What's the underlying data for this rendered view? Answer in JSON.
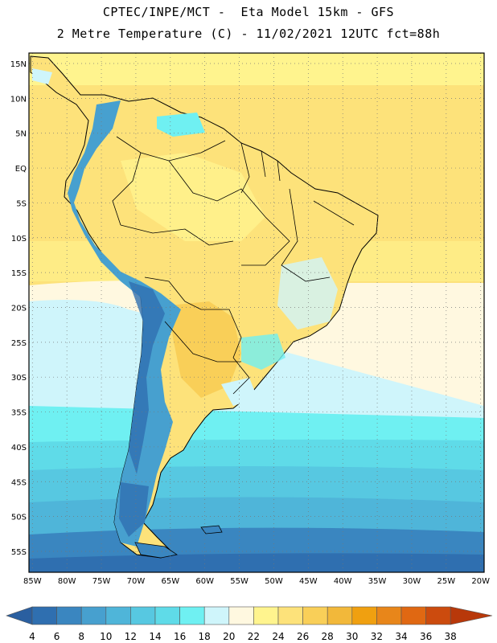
{
  "header": {
    "line1": "CPTEC/INPE/MCT -  Eta Model 15km - GFS",
    "line2": "2 Metre Temperature (C) - 11/02/2021 12UTC fct=88h"
  },
  "map": {
    "lat_labels": [
      "15N",
      "10N",
      "5N",
      "EQ",
      "5S",
      "10S",
      "15S",
      "20S",
      "25S",
      "30S",
      "35S",
      "40S",
      "45S",
      "50S",
      "55S"
    ],
    "lon_labels": [
      "85W",
      "80W",
      "75W",
      "70W",
      "65W",
      "60W",
      "55W",
      "50W",
      "45W",
      "40W",
      "35W",
      "30W",
      "25W",
      "20W"
    ],
    "lat_range": [
      16.5,
      -58
    ],
    "lon_range": [
      -85.5,
      -19.5
    ]
  },
  "colorbar": {
    "labels": [
      "4",
      "6",
      "8",
      "10",
      "12",
      "14",
      "16",
      "18",
      "20",
      "22",
      "24",
      "26",
      "28",
      "30",
      "32",
      "34",
      "36",
      "38"
    ],
    "colors": [
      "#2f6fb0",
      "#3a86c0",
      "#47a0cf",
      "#4fb5d9",
      "#57c8e1",
      "#5fdbe8",
      "#6ff0f2",
      "#cff5fb",
      "#fff8e0",
      "#fff48e",
      "#fde27a",
      "#f9cf58",
      "#f2b83a",
      "#f0a010",
      "#e8861a",
      "#e06812",
      "#cc4b0e",
      "#b8380a"
    ],
    "left_arrow_color": "#2a5fa0",
    "right_arrow_color": "#b8380a"
  }
}
